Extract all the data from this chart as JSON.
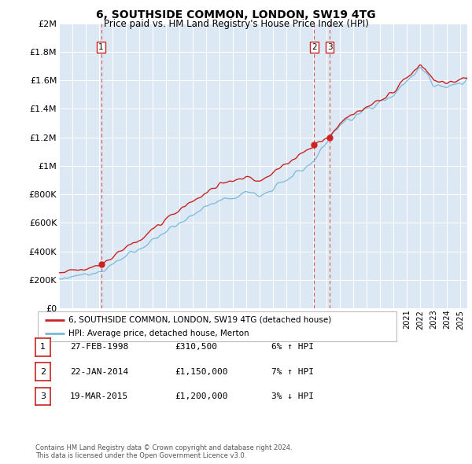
{
  "title": "6, SOUTHSIDE COMMON, LONDON, SW19 4TG",
  "subtitle": "Price paid vs. HM Land Registry's House Price Index (HPI)",
  "plot_bg_color": "#dce9f5",
  "ylim": [
    0,
    2000000
  ],
  "yticks": [
    0,
    200000,
    400000,
    600000,
    800000,
    1000000,
    1200000,
    1400000,
    1600000,
    1800000,
    2000000
  ],
  "ytick_labels": [
    "£0",
    "£200K",
    "£400K",
    "£600K",
    "£800K",
    "£1M",
    "£1.2M",
    "£1.4M",
    "£1.6M",
    "£1.8M",
    "£2M"
  ],
  "sale_dates_num": [
    1998.15,
    2014.06,
    2015.22
  ],
  "sale_prices": [
    310500,
    1150000,
    1200000
  ],
  "sale_labels": [
    "1",
    "2",
    "3"
  ],
  "hpi_line_color": "#7ab8d9",
  "price_line_color": "#cc2222",
  "vline_color": "#dd3333",
  "legend_label_price": "6, SOUTHSIDE COMMON, LONDON, SW19 4TG (detached house)",
  "legend_label_hpi": "HPI: Average price, detached house, Merton",
  "table_entries": [
    {
      "label": "1",
      "date": "27-FEB-1998",
      "price": "£310,500",
      "hpi": "6% ↑ HPI"
    },
    {
      "label": "2",
      "date": "22-JAN-2014",
      "price": "£1,150,000",
      "hpi": "7% ↑ HPI"
    },
    {
      "label": "3",
      "date": "19-MAR-2015",
      "price": "£1,200,000",
      "hpi": "3% ↓ HPI"
    }
  ],
  "footnote": "Contains HM Land Registry data © Crown copyright and database right 2024.\nThis data is licensed under the Open Government Licence v3.0.",
  "xmin": 1995.0,
  "xmax": 2025.5
}
